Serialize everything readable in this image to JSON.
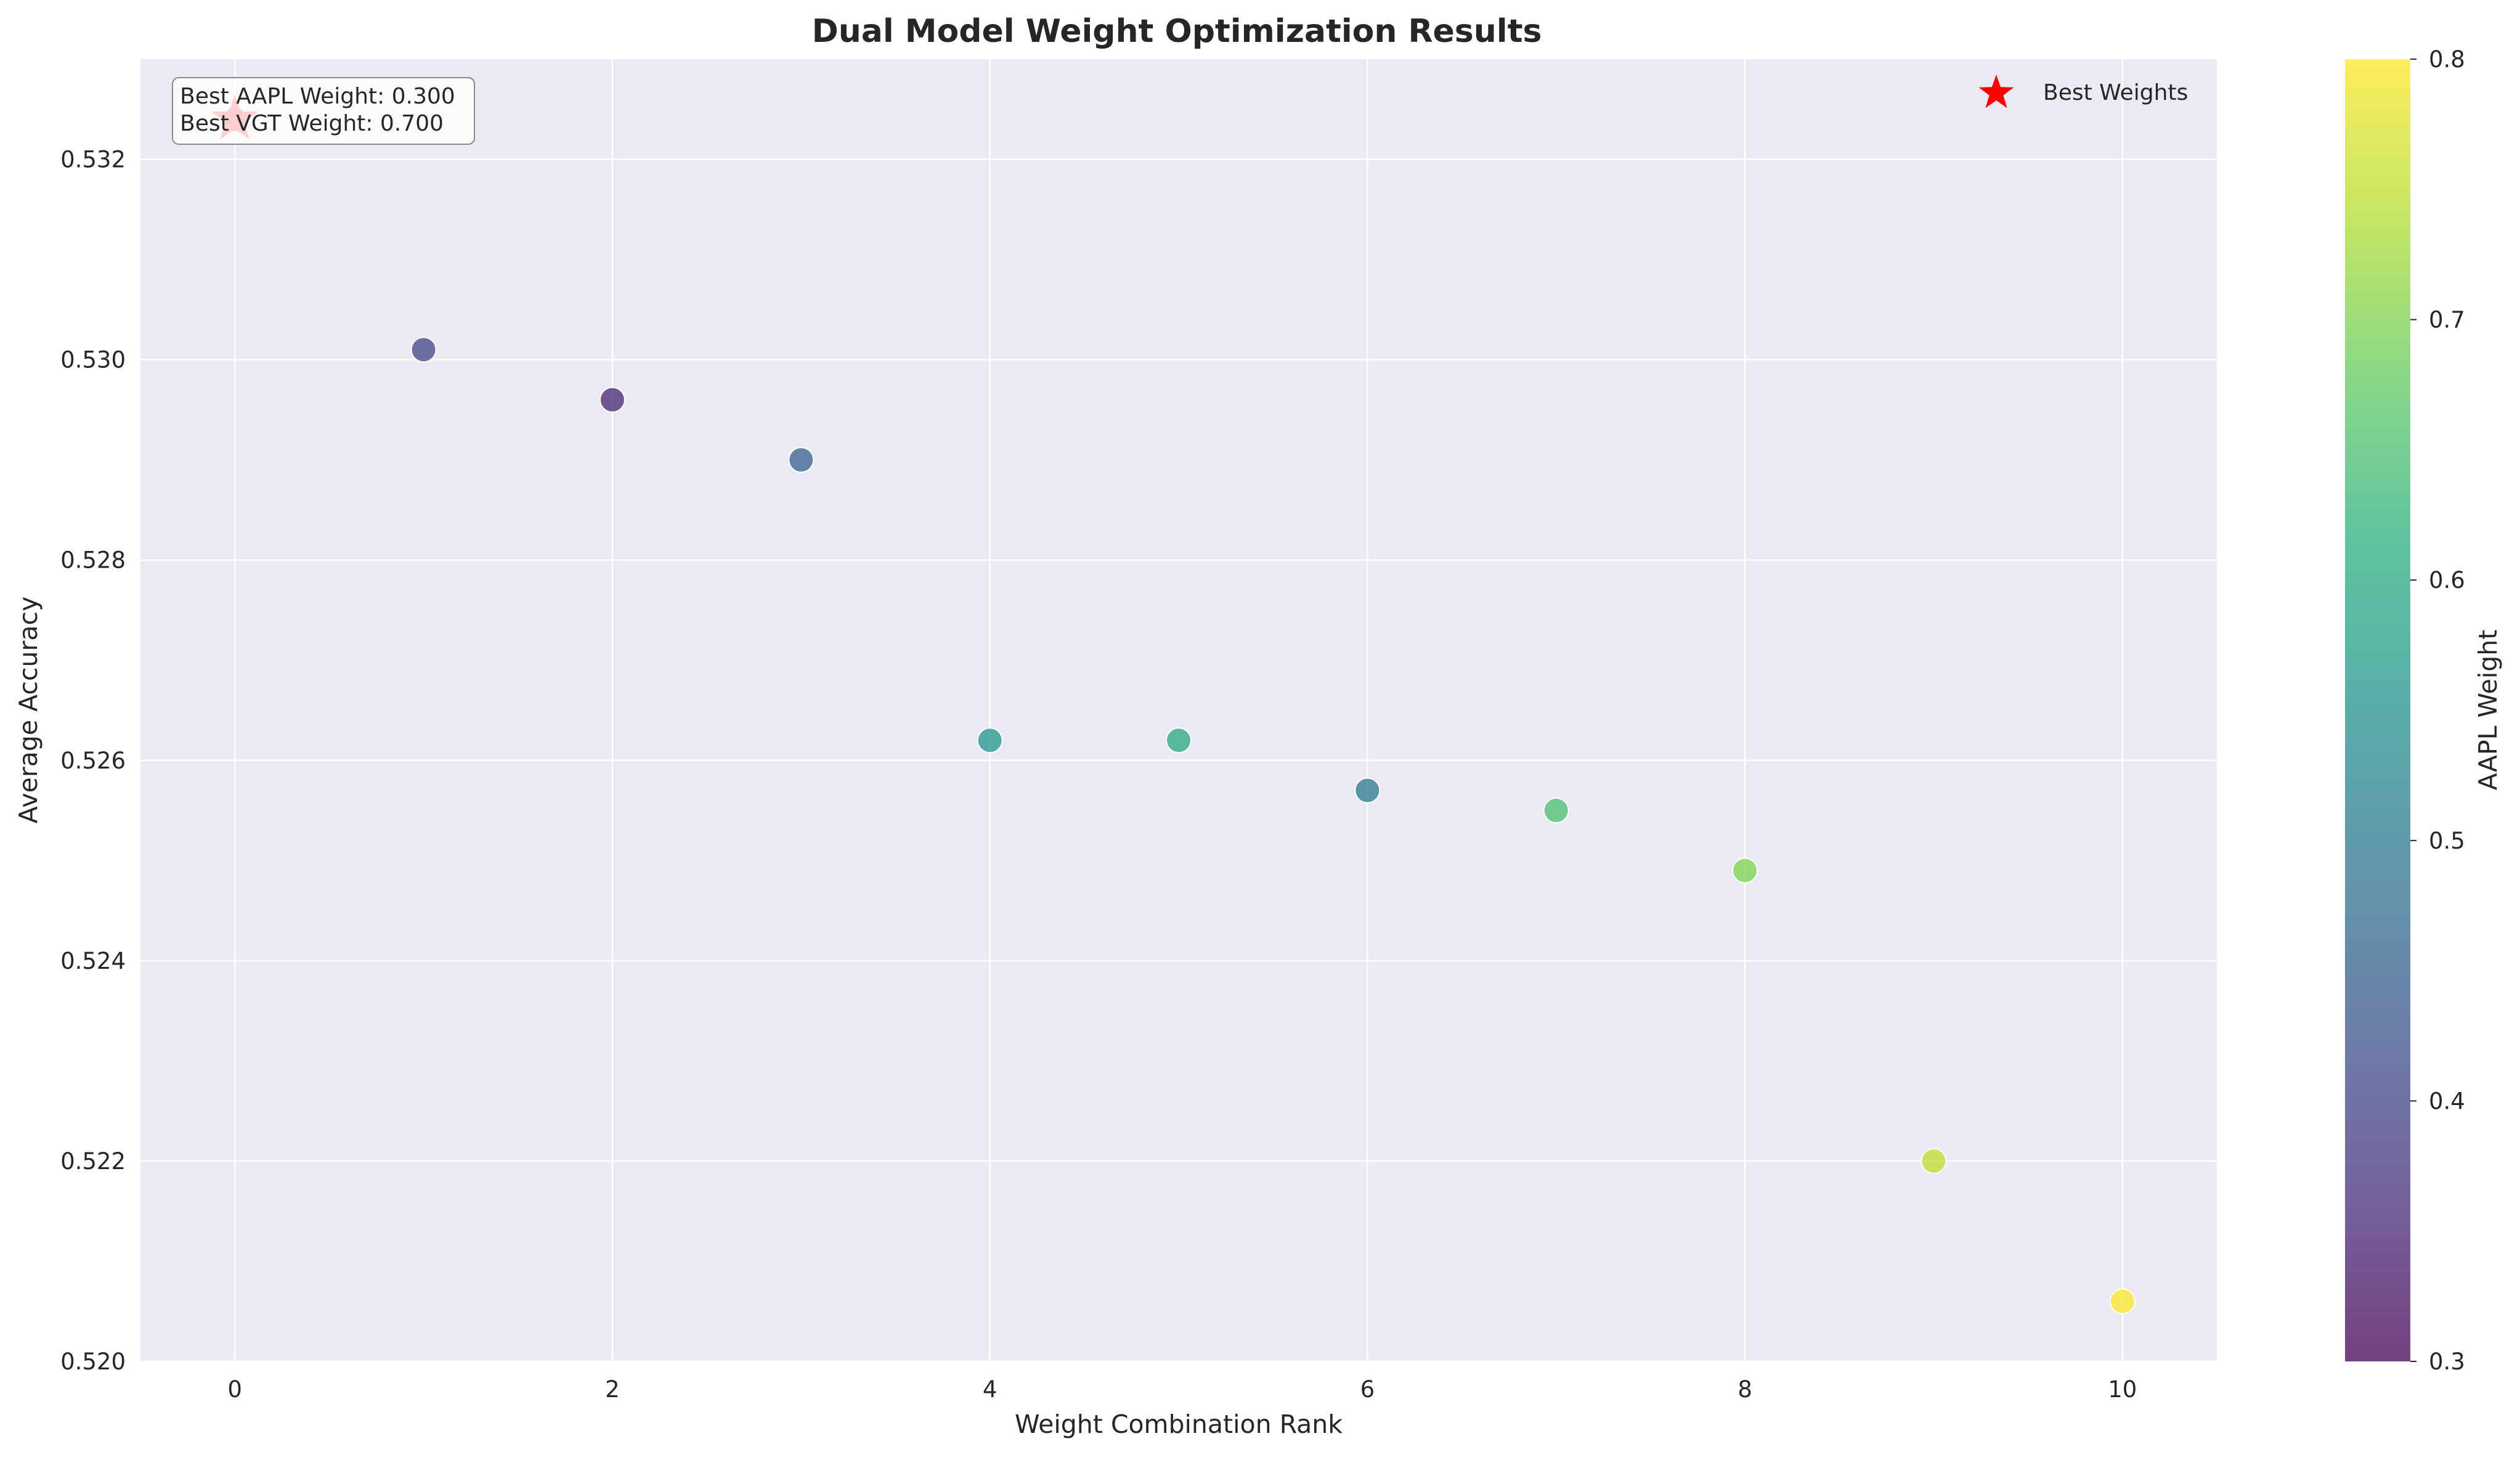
{
  "chart_data": {
    "type": "scatter",
    "title": "Dual Model Weight Optimization Results",
    "xlabel": "Weight Combination Rank",
    "ylabel": "Average Accuracy",
    "xlim": [
      -0.5,
      10.5
    ],
    "ylim": [
      0.52,
      0.533
    ],
    "xticks": [
      0,
      2,
      4,
      6,
      8,
      10
    ],
    "xtick_labels": [
      "0",
      "2",
      "4",
      "6",
      "8",
      "10"
    ],
    "yticks": [
      0.52,
      0.522,
      0.524,
      0.526,
      0.528,
      0.53,
      0.532
    ],
    "ytick_labels": [
      "0.520",
      "0.522",
      "0.524",
      "0.526",
      "0.528",
      "0.530",
      "0.532"
    ],
    "grid": true,
    "series": [
      {
        "x": [
          0,
          1,
          2,
          3,
          4,
          5,
          6,
          7,
          8,
          9,
          10
        ],
        "y": [
          0.5324,
          0.5301,
          0.5296,
          0.529,
          0.5262,
          0.5262,
          0.5257,
          0.5255,
          0.5249,
          0.522,
          0.5206
        ],
        "aapl_weight": [
          0.3,
          0.4,
          0.35,
          0.45,
          0.55,
          0.6,
          0.5,
          0.65,
          0.7,
          0.75,
          0.8
        ]
      }
    ],
    "best_point": {
      "x": 0,
      "y": 0.5324,
      "label": "Best Weights",
      "color": "#ff0000"
    },
    "legend": {
      "placement": "top-right",
      "entries": [
        "Best Weights"
      ]
    },
    "annotation": {
      "lines": [
        "Best AAPL Weight: 0.300",
        "Best VGT Weight: 0.700"
      ],
      "placement": "top-left"
    },
    "colorbar": {
      "label": "AAPL Weight",
      "range": [
        0.3,
        0.8
      ],
      "ticks": [
        0.3,
        0.4,
        0.5,
        0.6,
        0.7,
        0.8
      ],
      "tick_labels": [
        "0.3",
        "0.4",
        "0.5",
        "0.6",
        "0.7",
        "0.8"
      ],
      "colormap": "viridis"
    },
    "colors": {
      "plot_background": "#eaeaf2",
      "grid": "#ffffff",
      "text": "#262626"
    }
  }
}
